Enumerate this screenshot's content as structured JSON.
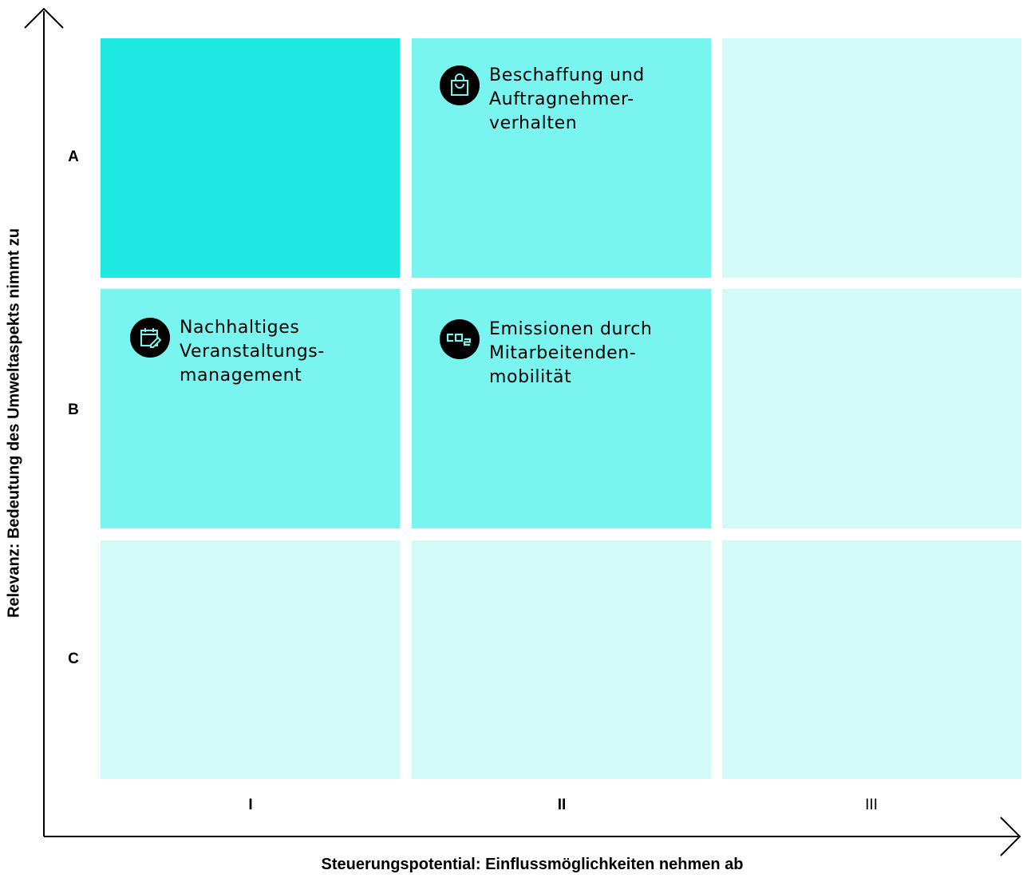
{
  "y_axis": {
    "title": "Relevanz: Bedeutung des Umweltaspekts nimmt zu"
  },
  "x_axis": {
    "title": "Steuerungspotential: Einflussmöglichkeiten nehmen ab"
  },
  "rows": [
    "A",
    "B",
    "C"
  ],
  "columns": [
    "I",
    "II",
    "III"
  ],
  "colors": {
    "high": "#20e8e2",
    "mid": "#7af4ef",
    "low": "#d2fbf8",
    "icon_bg": "#000000",
    "icon_fg": "#7af4ef"
  },
  "items": [
    {
      "icon": "shopping-bag-icon",
      "row": "A",
      "column": "II",
      "lines": [
        "Beschaffung und",
        "Auftragnehmer-",
        "verhalten"
      ]
    },
    {
      "icon": "calendar-edit-icon",
      "row": "B",
      "column": "I",
      "lines": [
        "Nachhaltiges",
        "Veranstaltungs-",
        "management"
      ]
    },
    {
      "icon": "co2-icon",
      "row": "B",
      "column": "II",
      "lines": [
        "Emissionen durch",
        "Mitarbeitenden-",
        "mobilität"
      ]
    }
  ]
}
